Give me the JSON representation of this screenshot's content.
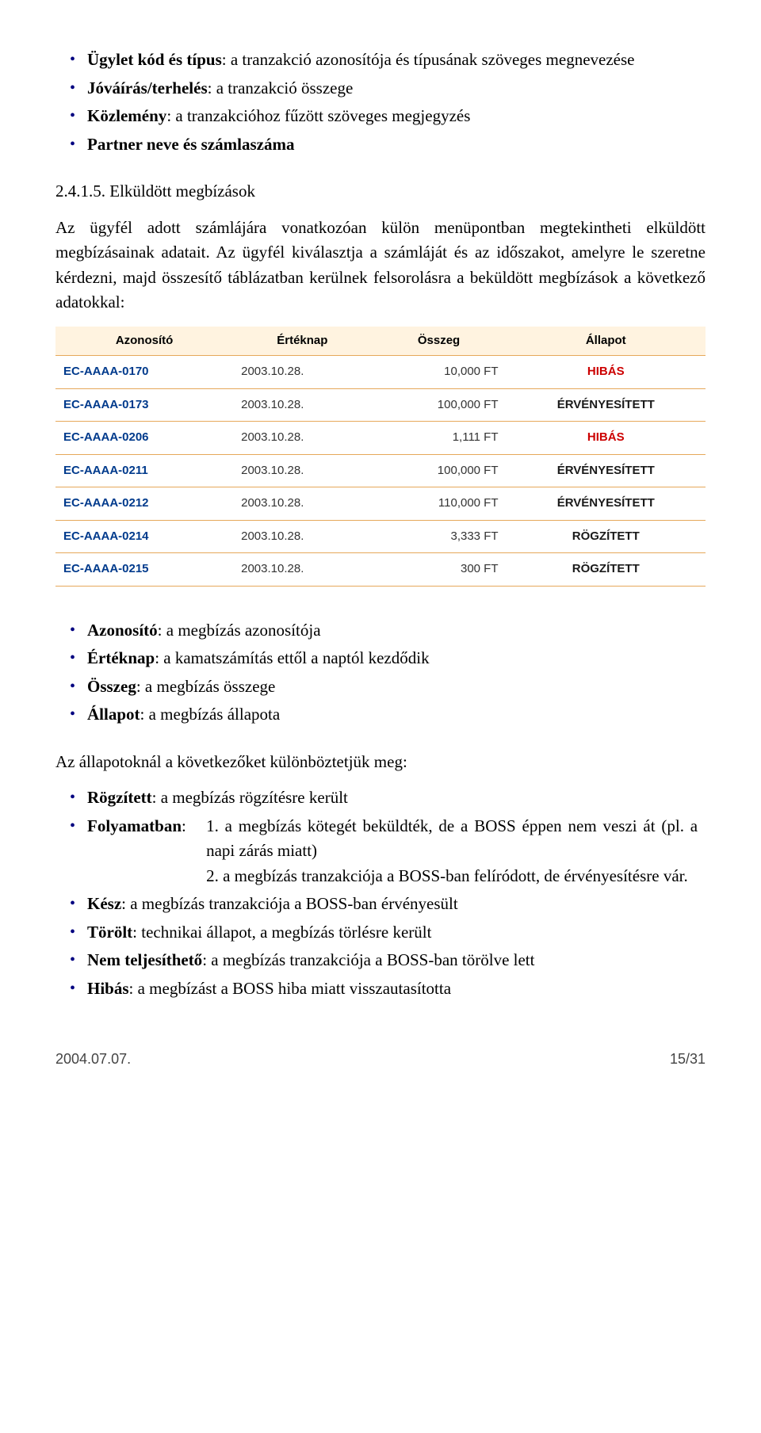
{
  "list_top": [
    {
      "b": "Ügylet kód és típus",
      "t": ": a tranzakció azonosítója és típusának szöveges megnevezése"
    },
    {
      "b": "Jóváírás/terhelés",
      "t": ": a tranzakció összege"
    },
    {
      "b": "Közlemény",
      "t": ": a tranzakcióhoz fűzött szöveges megjegyzés"
    },
    {
      "b": "Partner neve és számlaszáma",
      "t": ""
    }
  ],
  "section_num": "2.4.1.5. Elküldött megbízások",
  "body1": "Az ügyfél adott számlájára vonatkozóan külön menüpontban megtekintheti elküldött megbízásainak adatait. Az ügyfél kiválasztja a számláját és az időszakot, amelyre le szeretne kérdezni, majd összesítő táblázatban kerülnek felsorolásra a beküldött megbízások a következő adatokkal:",
  "table": {
    "headers": [
      "Azonosító",
      "Értéknap",
      "Összeg",
      "Állapot"
    ],
    "rows": [
      {
        "id": "EC-AAAA-0170",
        "date": "2003.10.28.",
        "amount": "10,000 FT",
        "status": "HIBÁS",
        "status_class": "st-hibas"
      },
      {
        "id": "EC-AAAA-0173",
        "date": "2003.10.28.",
        "amount": "100,000 FT",
        "status": "ÉRVÉNYESÍTETT",
        "status_class": "st-erv"
      },
      {
        "id": "EC-AAAA-0206",
        "date": "2003.10.28.",
        "amount": "1,111 FT",
        "status": "HIBÁS",
        "status_class": "st-hibas"
      },
      {
        "id": "EC-AAAA-0211",
        "date": "2003.10.28.",
        "amount": "100,000 FT",
        "status": "ÉRVÉNYESÍTETT",
        "status_class": "st-erv"
      },
      {
        "id": "EC-AAAA-0212",
        "date": "2003.10.28.",
        "amount": "110,000 FT",
        "status": "ÉRVÉNYESÍTETT",
        "status_class": "st-erv"
      },
      {
        "id": "EC-AAAA-0214",
        "date": "2003.10.28.",
        "amount": "3,333 FT",
        "status": "RÖGZÍTETT",
        "status_class": "st-rog"
      },
      {
        "id": "EC-AAAA-0215",
        "date": "2003.10.28.",
        "amount": "300 FT",
        "status": "RÖGZÍTETT",
        "status_class": "st-rog"
      }
    ]
  },
  "list_fields": [
    {
      "b": "Azonosító",
      "t": ": a megbízás azonosítója"
    },
    {
      "b": "Értéknap",
      "t": ": a kamatszámítás ettől a naptól kezdődik"
    },
    {
      "b": "Összeg",
      "t": ": a megbízás összege"
    },
    {
      "b": "Állapot",
      "t": ": a megbízás állapota"
    }
  ],
  "intro_states": "Az állapotoknál a következőket különböztetjük meg:",
  "states": {
    "rogzitett_b": "Rögzített",
    "rogzitett_t": ": a megbízás rögzítésre került",
    "folyamatban_b": "Folyamatban",
    "folyamatban_colon": ":",
    "folyamatban_1": "1. a megbízás kötegét beküldték, de a BOSS éppen nem veszi át (pl. a napi zárás miatt)",
    "folyamatban_2": "2. a megbízás tranzakciója a BOSS-ban felíródott, de érvényesítésre vár.",
    "kesz_b": "Kész",
    "kesz_t": ": a megbízás tranzakciója a BOSS-ban érvényesült",
    "torolt_b": "Törölt",
    "torolt_t": ": technikai állapot, a megbízás törlésre került",
    "nemtelj_b": "Nem teljesíthető",
    "nemtelj_t": ": a megbízás tranzakciója a BOSS-ban törölve lett",
    "hibas_b": "Hibás",
    "hibas_t": ": a megbízást a BOSS hiba miatt visszautasította"
  },
  "footer": {
    "date": "2004.07.07.",
    "page": "15/31"
  }
}
